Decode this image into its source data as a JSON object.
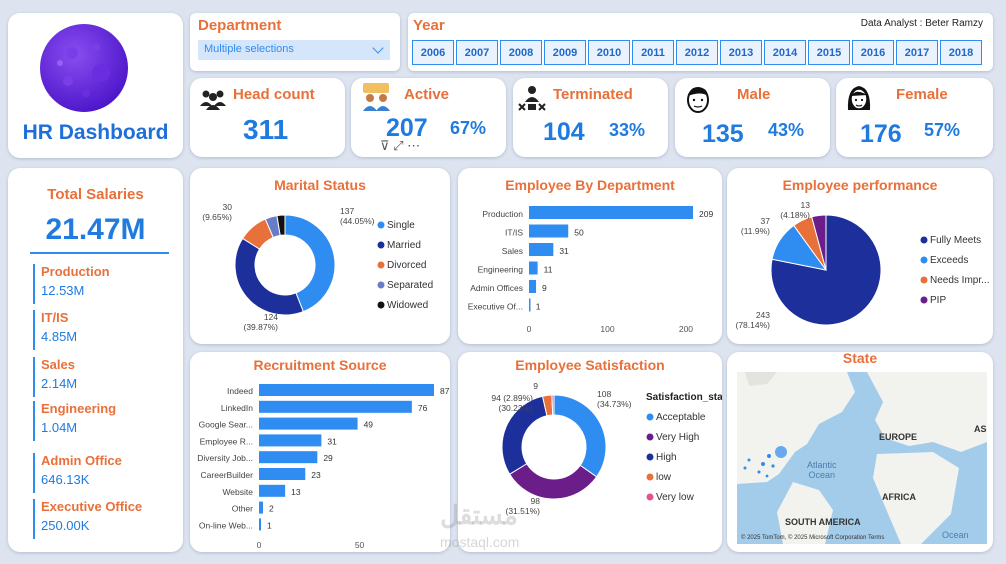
{
  "header": {
    "title": "HR Dashboard",
    "department_label": "Department",
    "department_value": "Multiple selections",
    "year_label": "Year",
    "analyst": "Data Analyst : Beter Ramzy",
    "years": [
      "2006",
      "2007",
      "2008",
      "2009",
      "2010",
      "2011",
      "2012",
      "2013",
      "2014",
      "2015",
      "2016",
      "2017",
      "2018"
    ]
  },
  "kpis": {
    "headcount": {
      "label": "Head count",
      "value": "311"
    },
    "active": {
      "label": "Active",
      "value": "207",
      "pct": "67%"
    },
    "terminated": {
      "label": "Terminated",
      "value": "104",
      "pct": "33%"
    },
    "male": {
      "label": "Male",
      "value": "135",
      "pct": "43%"
    },
    "female": {
      "label": "Female",
      "value": "176",
      "pct": "57%"
    }
  },
  "salaries": {
    "title": "Total Salaries",
    "total": "21.47M",
    "items": [
      {
        "name": "Production",
        "value": "12.53M"
      },
      {
        "name": "IT/IS",
        "value": "4.85M"
      },
      {
        "name": "Sales",
        "value": "2.14M"
      },
      {
        "name": "Engineering",
        "value": "1.04M"
      },
      {
        "name": "Admin Office",
        "value": "646.13K"
      },
      {
        "name": "Executive Office",
        "value": "250.00K"
      }
    ]
  },
  "visual_tools": "⊽ ⤢ ⋯",
  "state": {
    "title": "State",
    "labels": {
      "europe": "EUROPE",
      "africa": "AFRICA",
      "south_america": "SOUTH AMERICA",
      "asia": "AS",
      "atlantic": "Atlantic\nOcean",
      "ocean2": "Ocean"
    },
    "footer": "© 2025 TomTom, © 2025 Microsoft Corporation Terms"
  },
  "watermark": {
    "main": "مستقل",
    "sub": "mostaql.com"
  },
  "colors": {
    "blue": "#2f8cf0",
    "navy": "#1d2f9a",
    "orange": "#e8703a",
    "purple": "#6b1d8a",
    "pink": "#e0558f",
    "slate": "#6a7bc8",
    "black": "#111111"
  },
  "chart_data": [
    {
      "id": "marital",
      "type": "pie",
      "title": "Marital Status",
      "donut": true,
      "slices": [
        {
          "name": "Single",
          "value": 137,
          "label": "137\n(44.05%)",
          "color": "#2f8cf0"
        },
        {
          "name": "Married",
          "value": 124,
          "label": "124\n(39.87%)",
          "color": "#1d2f9a"
        },
        {
          "name": "Divorced",
          "value": 30,
          "label": "30\n(9.65%)",
          "color": "#e8703a"
        },
        {
          "name": "Separated",
          "value": 12,
          "label": "",
          "color": "#6a7bc8"
        },
        {
          "name": "Widowed",
          "value": 8,
          "label": "",
          "color": "#111111"
        }
      ],
      "legend": [
        "Single",
        "Married",
        "Divorced",
        "Separated",
        "Widowed"
      ]
    },
    {
      "id": "dept",
      "type": "bar",
      "orientation": "horizontal",
      "title": "Employee By Department",
      "categories": [
        "Production",
        "IT/IS",
        "Sales",
        "Engineering",
        "Admin Offices",
        "Executive Of..."
      ],
      "values": [
        209,
        50,
        31,
        11,
        9,
        1
      ],
      "xlim": [
        0,
        209
      ],
      "xticks": [
        0,
        100,
        200
      ]
    },
    {
      "id": "perf",
      "type": "pie",
      "title": "Employee performance",
      "donut": false,
      "slices": [
        {
          "name": "Fully Meets",
          "value": 243,
          "label": "243\n(78.14%)",
          "color": "#1d2f9a"
        },
        {
          "name": "Exceeds",
          "value": 37,
          "label": "37\n(11.9%)",
          "color": "#2f8cf0"
        },
        {
          "name": "Needs Impr...",
          "value": 18,
          "label": "",
          "color": "#e8703a"
        },
        {
          "name": "PIP",
          "value": 13,
          "label": "13\n(4.18%)",
          "color": "#6b1d8a"
        }
      ],
      "legend": [
        "Fully Meets",
        "Exceeds",
        "Needs Impr...",
        "PIP"
      ]
    },
    {
      "id": "recruit",
      "type": "bar",
      "orientation": "horizontal",
      "title": "Recruitment Source",
      "categories": [
        "Indeed",
        "LinkedIn",
        "Google Sear...",
        "Employee R...",
        "Diversity Job...",
        "CareerBuilder",
        "Website",
        "Other",
        "On-line Web..."
      ],
      "values": [
        87,
        76,
        49,
        31,
        29,
        23,
        13,
        2,
        1
      ],
      "xlim": [
        0,
        87
      ],
      "xticks": [
        0,
        50
      ]
    },
    {
      "id": "sat",
      "type": "pie",
      "title": "Employee Satisfaction",
      "donut": true,
      "legend_title": "Satisfaction_sta...",
      "slices": [
        {
          "name": "Acceptable",
          "value": 108,
          "label": "108\n(34.73%)",
          "color": "#2f8cf0"
        },
        {
          "name": "Very High",
          "value": 98,
          "label": "98\n(31.51%)",
          "color": "#6b1d8a"
        },
        {
          "name": "High",
          "value": 94,
          "label": "94 (2.89%)\n(30.23%)",
          "color": "#1d2f9a"
        },
        {
          "name": "low",
          "value": 9,
          "label": "9",
          "color": "#e8703a"
        },
        {
          "name": "Very low",
          "value": 2,
          "label": "",
          "color": "#e0558f"
        }
      ],
      "legend": [
        "Acceptable",
        "Very High",
        "High",
        "low",
        "Very low"
      ]
    }
  ]
}
